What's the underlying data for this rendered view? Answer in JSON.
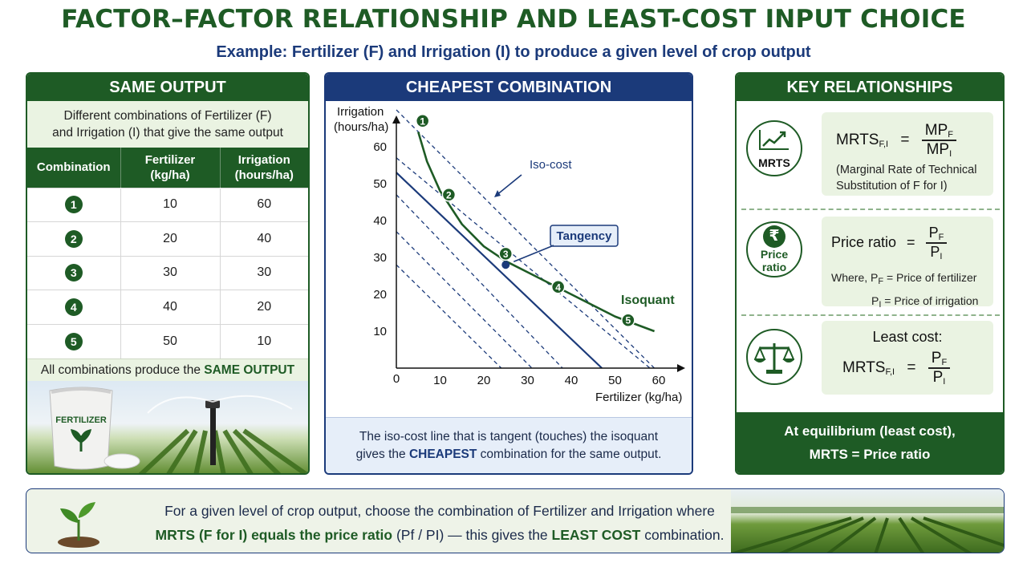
{
  "title": "FACTOR–FACTOR RELATIONSHIP AND LEAST-COST INPUT CHOICE",
  "subtitle": "Example: Fertilizer (F) and Irrigation (I) to produce a given level of crop output",
  "panel_same_output": {
    "heading": "SAME OUTPUT",
    "intro_line1": "Different combinations of Fertilizer (F)",
    "intro_line2": "and Irrigation (I) that give the same output",
    "columns": [
      "Combination",
      "Fertilizer",
      "(kg/ha)",
      "Irrigation",
      "(hours/ha)"
    ],
    "rows": [
      {
        "id": "1",
        "fertilizer": "10",
        "irrigation": "60"
      },
      {
        "id": "2",
        "fertilizer": "20",
        "irrigation": "40"
      },
      {
        "id": "3",
        "fertilizer": "30",
        "irrigation": "30"
      },
      {
        "id": "4",
        "fertilizer": "40",
        "irrigation": "20"
      },
      {
        "id": "5",
        "fertilizer": "50",
        "irrigation": "10"
      }
    ],
    "footer_prefix": "All combinations produce the",
    "footer_strong": "SAME OUTPUT",
    "bag_label": "FERTILIZER"
  },
  "panel_cheapest": {
    "heading": "CHEAPEST COMBINATION",
    "ylabel_line1": "Irrigation",
    "ylabel_line2": "(hours/ha)",
    "xlabel": "Fertilizer (kg/ha)",
    "label_isocost": "Iso-cost",
    "label_tangency": "Tangency",
    "label_isoquant": "Isoquant",
    "footer_line1": "The iso-cost line that is tangent (touches) the isoquant",
    "footer_pre": "gives the",
    "footer_strong": "CHEAPEST",
    "footer_post": "combination for the same output."
  },
  "chart_data": {
    "type": "line",
    "x_ticks": [
      "10",
      "20",
      "30",
      "40",
      "50",
      "60"
    ],
    "y_ticks": [
      "10",
      "20",
      "30",
      "40",
      "50",
      "60"
    ],
    "origin_label": "0",
    "xlim": [
      0,
      60
    ],
    "ylim": [
      0,
      70
    ],
    "isoquant": {
      "x": [
        5,
        7,
        10,
        15,
        20,
        25,
        30,
        40,
        50,
        59
      ],
      "y": [
        64,
        56,
        48,
        39,
        33,
        29,
        26,
        20,
        14,
        10
      ]
    },
    "isocost_lines": [
      {
        "x": [
          0,
          59
        ],
        "y": [
          70,
          0
        ],
        "style": "dashed"
      },
      {
        "x": [
          0,
          58
        ],
        "y": [
          57,
          0
        ],
        "style": "dashed"
      },
      {
        "x": [
          0,
          47
        ],
        "y": [
          53,
          0
        ],
        "style": "solid"
      },
      {
        "x": [
          0,
          38
        ],
        "y": [
          47,
          0
        ],
        "style": "dashed"
      },
      {
        "x": [
          0,
          31
        ],
        "y": [
          37,
          0
        ],
        "style": "dashed"
      },
      {
        "x": [
          0,
          24
        ],
        "y": [
          28,
          0
        ],
        "style": "dashed"
      }
    ],
    "points": [
      {
        "label": "1",
        "x": 6,
        "y": 67
      },
      {
        "label": "2",
        "x": 12,
        "y": 47
      },
      {
        "label": "3",
        "x": 25,
        "y": 31
      },
      {
        "label": "4",
        "x": 37,
        "y": 22
      },
      {
        "label": "5",
        "x": 53,
        "y": 13
      }
    ],
    "tangency_point": {
      "x": 25,
      "y": 28
    }
  },
  "panel_key": {
    "heading": "KEY RELATIONSHIPS",
    "mrts_icon_label": "MRTS",
    "mrts_lhs": "MRTS",
    "mrts_sub": "F,I",
    "mp": "MP",
    "sub_f": "F",
    "sub_i": "I",
    "mrts_note_line1": "(Marginal Rate of Technical",
    "mrts_note_line2": "Substitution of F for I)",
    "price_icon_symbol": "₹",
    "price_icon_line1": "Price",
    "price_icon_line2": "ratio",
    "price_ratio_lhs": "Price ratio",
    "p": "P",
    "where": "Where,",
    "pf_desc": "= Price of fertilizer",
    "pi_desc": "= Price of irrigation",
    "least_cost_label": "Least cost:",
    "equals": "=",
    "footer_line1": "At equilibrium (least cost),",
    "footer_line2": "MRTS = Price ratio"
  },
  "bottom": {
    "line1": "For a given level of crop output, choose the combination of Fertilizer and Irrigation where",
    "line2_strong1": "MRTS (F for I) equals the price ratio",
    "line2_plain1": "(Pf / PI) — this gives the",
    "line2_strong2": "LEAST COST",
    "line2_plain2": "combination."
  },
  "colors": {
    "green": "#1e5b25",
    "navy": "#1b3a7a",
    "light_green": "#eaf3e2",
    "light_blue": "#e6eef9"
  }
}
